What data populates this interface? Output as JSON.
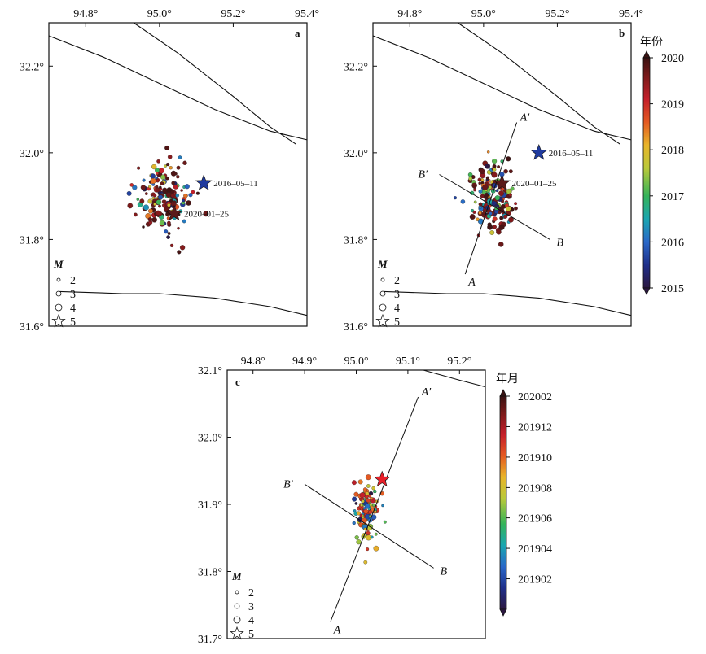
{
  "colors": {
    "background": "#ffffff",
    "fault_line": "#111111",
    "star_2016": "#1f3a9e",
    "star_2020": "#5a1a1a",
    "star_c": "#e8202a",
    "colormap": [
      "#2b1740",
      "#1f2f8a",
      "#2a68c8",
      "#1aa6b0",
      "#35b35a",
      "#b9c93a",
      "#e8b52a",
      "#e45a22",
      "#c41f2a",
      "#7a1a1a",
      "#3a1212"
    ]
  },
  "chart_data": [
    {
      "id": "a",
      "type": "scatter",
      "panel_label": "a",
      "xlim": [
        94.7,
        95.4
      ],
      "ylim": [
        31.6,
        32.3
      ],
      "xticks": [
        "94.8°",
        "95.0°",
        "95.2°",
        "95.4°"
      ],
      "xtick_values": [
        94.8,
        95.0,
        95.2,
        95.4
      ],
      "yticks": [
        "31.6°",
        "31.8°",
        "32.0°",
        "32.2°"
      ],
      "ytick_values": [
        31.6,
        31.8,
        32.0,
        32.2
      ],
      "stars": [
        {
          "lon": 95.12,
          "lat": 31.93,
          "label": "2016–05–11",
          "color": "#1f3a9e"
        },
        {
          "lon": 95.04,
          "lat": 31.86,
          "label": "2020–01–25",
          "color": "#5a1a1a"
        }
      ],
      "cluster": {
        "center_lon": 95.01,
        "center_lat": 31.9,
        "spread_lon": 0.045,
        "spread_lat": 0.05,
        "count": 180,
        "color_range": [
          2015,
          2020
        ]
      },
      "faults": [
        [
          [
            94.7,
            32.27
          ],
          [
            94.85,
            32.22
          ],
          [
            95.0,
            32.16
          ],
          [
            95.15,
            32.1
          ],
          [
            95.3,
            32.05
          ],
          [
            95.4,
            32.03
          ]
        ],
        [
          [
            94.93,
            32.3
          ],
          [
            95.05,
            32.23
          ],
          [
            95.2,
            32.13
          ],
          [
            95.3,
            32.06
          ],
          [
            95.37,
            32.02
          ]
        ],
        [
          [
            94.73,
            31.68
          ],
          [
            94.9,
            31.675
          ],
          [
            95.0,
            31.675
          ],
          [
            95.15,
            31.665
          ],
          [
            95.3,
            31.645
          ],
          [
            95.4,
            31.625
          ]
        ]
      ]
    },
    {
      "id": "b",
      "type": "scatter",
      "panel_label": "b",
      "xlim": [
        94.7,
        95.4
      ],
      "ylim": [
        31.6,
        32.3
      ],
      "xticks": [
        "94.8°",
        "95.0°",
        "95.2°",
        "95.4°"
      ],
      "xtick_values": [
        94.8,
        95.0,
        95.2,
        95.4
      ],
      "yticks": [
        "31.6°",
        "31.8°",
        "32.0°",
        "32.2°"
      ],
      "ytick_values": [
        31.6,
        31.8,
        32.0,
        32.2
      ],
      "stars": [
        {
          "lon": 95.15,
          "lat": 32.0,
          "label": "2016–05–11",
          "color": "#1f3a9e"
        },
        {
          "lon": 95.05,
          "lat": 31.93,
          "label": "2020–01–25",
          "color": "#5a1a1a"
        }
      ],
      "cluster": {
        "center_lon": 95.02,
        "center_lat": 31.9,
        "spread_lon": 0.04,
        "spread_lat": 0.045,
        "count": 180,
        "color_range": [
          2015,
          2020
        ]
      },
      "profiles": [
        {
          "start_label": "A",
          "end_label": "A′",
          "start": [
            94.95,
            31.72
          ],
          "end": [
            95.09,
            32.07
          ]
        },
        {
          "start_label": "B′",
          "end_label": "B",
          "start": [
            94.88,
            31.95
          ],
          "end": [
            95.18,
            31.8
          ]
        }
      ],
      "faults": [
        [
          [
            94.7,
            32.27
          ],
          [
            94.85,
            32.22
          ],
          [
            95.0,
            32.16
          ],
          [
            95.15,
            32.1
          ],
          [
            95.3,
            32.05
          ],
          [
            95.4,
            32.03
          ]
        ],
        [
          [
            94.93,
            32.3
          ],
          [
            95.05,
            32.23
          ],
          [
            95.2,
            32.13
          ],
          [
            95.3,
            32.06
          ],
          [
            95.37,
            32.02
          ]
        ],
        [
          [
            94.73,
            31.68
          ],
          [
            94.9,
            31.675
          ],
          [
            95.0,
            31.675
          ],
          [
            95.15,
            31.665
          ],
          [
            95.3,
            31.645
          ],
          [
            95.4,
            31.625
          ]
        ]
      ]
    },
    {
      "id": "c",
      "type": "scatter",
      "panel_label": "c",
      "xlim": [
        94.75,
        95.25
      ],
      "ylim": [
        31.7,
        32.1
      ],
      "xticks": [
        "94.8°",
        "94.9°",
        "95.0°",
        "95.1°",
        "95.2°"
      ],
      "xtick_values": [
        94.8,
        94.9,
        95.0,
        95.1,
        95.2
      ],
      "yticks": [
        "31.7°",
        "31.8°",
        "31.9°",
        "32.0°",
        "32.1°"
      ],
      "ytick_values": [
        31.7,
        31.8,
        31.9,
        32.0,
        32.1
      ],
      "stars": [
        {
          "lon": 95.05,
          "lat": 31.937,
          "label": "",
          "color": "#e8202a"
        }
      ],
      "cluster": {
        "center_lon": 95.02,
        "center_lat": 31.89,
        "spread_lon": 0.015,
        "spread_lat": 0.03,
        "count": 110,
        "color_range": [
          201901,
          202002
        ]
      },
      "profiles": [
        {
          "start_label": "A",
          "end_label": "A′",
          "start": [
            94.95,
            31.725
          ],
          "end": [
            95.12,
            32.06
          ]
        },
        {
          "start_label": "B′",
          "end_label": "B",
          "start": [
            94.9,
            31.93
          ],
          "end": [
            95.15,
            31.805
          ]
        }
      ],
      "faults": [
        [
          [
            95.13,
            32.1
          ],
          [
            95.2,
            32.085
          ],
          [
            95.25,
            32.075
          ]
        ]
      ]
    }
  ],
  "legend": {
    "title": "M",
    "items": [
      {
        "label": "2",
        "r": 2
      },
      {
        "label": "3",
        "r": 3
      },
      {
        "label": "4",
        "r": 4
      },
      {
        "label": "5",
        "star": true
      }
    ]
  },
  "colorbar_top": {
    "title": "年份",
    "ticks": [
      "2020",
      "2019",
      "2018",
      "2017",
      "2016",
      "2015"
    ],
    "tick_values": [
      2020,
      2019,
      2018,
      2017,
      2016,
      2015
    ]
  },
  "colorbar_bottom": {
    "title": "年月",
    "ticks": [
      "202002",
      "201912",
      "201910",
      "201908",
      "201906",
      "201904",
      "201902"
    ],
    "tick_values": [
      1,
      0.857,
      0.714,
      0.571,
      0.429,
      0.286,
      0.143
    ]
  }
}
